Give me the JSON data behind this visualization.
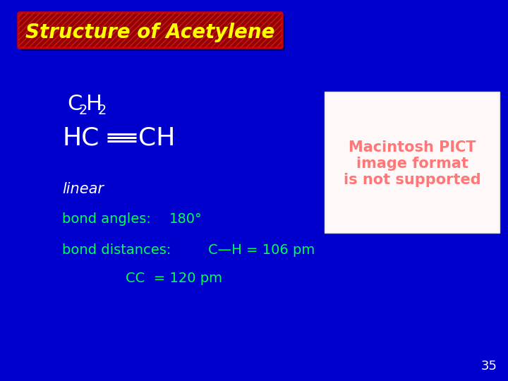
{
  "background_color": "#0000CC",
  "title_text": "Structure of Acetylene",
  "title_bg_color": "#990000",
  "title_text_color": "#FFFF00",
  "title_font_size": 20,
  "white_color": "#FFFFFF",
  "green_color": "#00FF55",
  "yellow_color": "#FFFF00",
  "linear_text": "linear",
  "bond_angles_label": "bond angles:",
  "bond_angles_value": "180°",
  "bond_distances_label": "bond distances:",
  "bond_ch_text": "C—H = 106 pm",
  "bond_cc_text": "CC  = 120 pm",
  "pict_box_facecolor": "#FFF8F8",
  "pict_text_color": "#FF7777",
  "pict_text": "Macintosh PICT\nimage format\nis not supported",
  "slide_number": "35",
  "slide_number_color": "#FFFFFF",
  "figwidth": 7.2,
  "figheight": 5.4,
  "dpi": 100
}
